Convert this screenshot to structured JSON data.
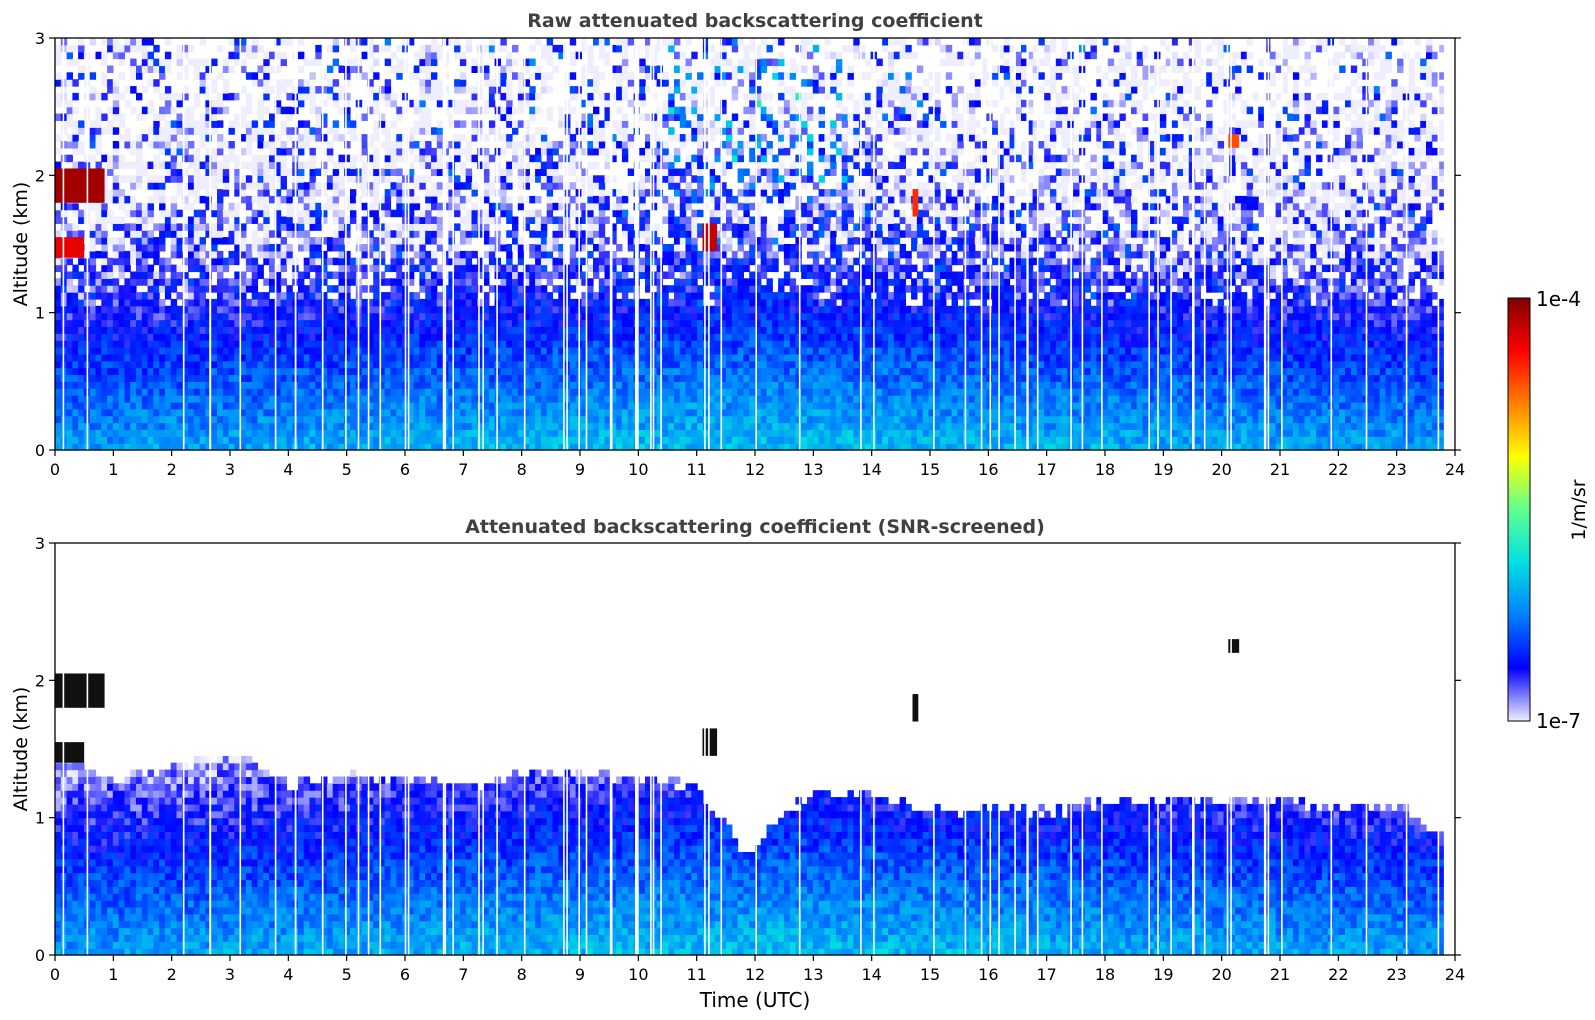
{
  "figure": {
    "colorbar": {
      "label": "1/m/sr",
      "max_label": "1e-4",
      "min_label": "1e-7",
      "scale": "log",
      "range": [
        1e-07,
        0.0001
      ],
      "colormap": [
        "#eeeeff",
        "#0000ff",
        "#0080ff",
        "#00e0e0",
        "#60ff90",
        "#ffff00",
        "#ff8000",
        "#ff0000",
        "#800000"
      ]
    }
  },
  "chart_data": [
    {
      "type": "heatmap",
      "title": "Raw attenuated backscattering coefficient",
      "xlabel": "",
      "ylabel": "Altitude (km)",
      "xlim": [
        0,
        24
      ],
      "ylim": [
        0,
        3
      ],
      "xticks": [
        0,
        1,
        2,
        3,
        4,
        5,
        6,
        7,
        8,
        9,
        10,
        11,
        12,
        13,
        14,
        15,
        16,
        17,
        18,
        19,
        20,
        21,
        22,
        23,
        24
      ],
      "yticks": [
        0,
        1,
        2,
        3
      ],
      "description_values": {
        "near_surface_log10": -6.0,
        "upper_noise": true,
        "cloud_patches": [
          {
            "t": [
              0.0,
              0.85
            ],
            "z": [
              1.8,
              2.05
            ],
            "log10": -4.1
          },
          {
            "t": [
              0.0,
              0.5
            ],
            "z": [
              1.4,
              1.55
            ],
            "log10": -4.3
          },
          {
            "t": [
              11.1,
              11.35
            ],
            "z": [
              1.45,
              1.65
            ],
            "log10": -4.2
          },
          {
            "t": [
              20.1,
              20.3
            ],
            "z": [
              2.2,
              2.3
            ],
            "log10": -4.6
          },
          {
            "t": [
              14.7,
              14.8
            ],
            "z": [
              1.7,
              1.9
            ],
            "log10": -4.5
          }
        ]
      }
    },
    {
      "type": "heatmap",
      "title": "Attenuated backscattering coefficient (SNR-screened)",
      "xlabel": "Time (UTC)",
      "ylabel": "Altitude (km)",
      "xlim": [
        0,
        24
      ],
      "ylim": [
        0,
        3
      ],
      "xticks": [
        0,
        1,
        2,
        3,
        4,
        5,
        6,
        7,
        8,
        9,
        10,
        11,
        12,
        13,
        14,
        15,
        16,
        17,
        18,
        19,
        20,
        21,
        22,
        23,
        24
      ],
      "yticks": [
        0,
        1,
        2,
        3
      ],
      "layer_top_km": [
        [
          0,
          1.5
        ],
        [
          1,
          1.25
        ],
        [
          2,
          1.35
        ],
        [
          3,
          1.45
        ],
        [
          4,
          1.2
        ],
        [
          5,
          1.3
        ],
        [
          6,
          1.25
        ],
        [
          7,
          1.2
        ],
        [
          8,
          1.3
        ],
        [
          9,
          1.3
        ],
        [
          10,
          1.25
        ],
        [
          11,
          1.2
        ],
        [
          11.8,
          0.7
        ],
        [
          12.5,
          1.0
        ],
        [
          13,
          1.15
        ],
        [
          14,
          1.15
        ],
        [
          15,
          1.0
        ],
        [
          16,
          1.05
        ],
        [
          17,
          1.0
        ],
        [
          18,
          1.1
        ],
        [
          19,
          1.1
        ],
        [
          20,
          1.1
        ],
        [
          21,
          1.1
        ],
        [
          22,
          1.05
        ],
        [
          23,
          1.05
        ],
        [
          23.8,
          0.85
        ]
      ]
    }
  ]
}
